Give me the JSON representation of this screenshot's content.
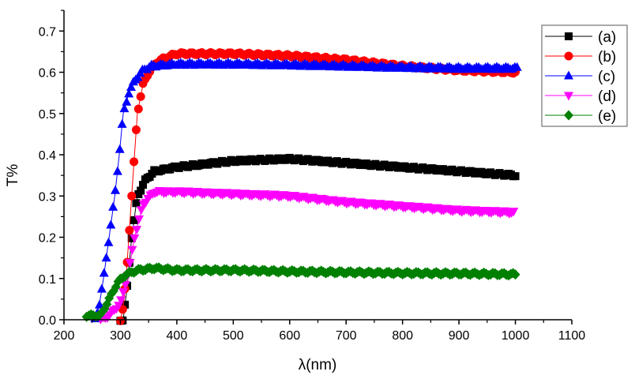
{
  "chart_data": {
    "type": "scatter",
    "title": "",
    "xlabel": "λ(nm)",
    "ylabel": "T%",
    "xlim": [
      200,
      1100
    ],
    "ylim": [
      0.0,
      0.75
    ],
    "xticks": [
      "200",
      "300",
      "400",
      "500",
      "600",
      "700",
      "800",
      "900",
      "1000",
      "1100"
    ],
    "yticks": [
      "0.0",
      "0.1",
      "0.2",
      "0.3",
      "0.4",
      "0.5",
      "0.6",
      "0.7"
    ],
    "grid": false,
    "legend_position": "top-right",
    "series": [
      {
        "name": "(a)",
        "color": "#000000",
        "marker": "square",
        "x": [
          300,
          305,
          312,
          320,
          330,
          345,
          360,
          400,
          500,
          600,
          700,
          800,
          900,
          1000
        ],
        "y": [
          0.0,
          0.0,
          0.08,
          0.2,
          0.3,
          0.34,
          0.36,
          0.37,
          0.385,
          0.39,
          0.38,
          0.37,
          0.36,
          0.35
        ]
      },
      {
        "name": "(b)",
        "color": "#ff0000",
        "marker": "circle",
        "x": [
          300,
          305,
          310,
          315,
          320,
          325,
          330,
          340,
          350,
          365,
          380,
          400,
          500,
          600,
          700,
          800,
          900,
          1000
        ],
        "y": [
          0.0,
          0.03,
          0.1,
          0.2,
          0.3,
          0.4,
          0.5,
          0.57,
          0.6,
          0.625,
          0.635,
          0.645,
          0.645,
          0.64,
          0.63,
          0.615,
          0.605,
          0.6
        ]
      },
      {
        "name": "(c)",
        "color": "#0000ff",
        "marker": "triangle-up",
        "x": [
          255,
          262,
          270,
          280,
          290,
          298,
          305,
          315,
          325,
          340,
          355,
          400,
          500,
          600,
          700,
          800,
          900,
          1005
        ],
        "y": [
          0.0,
          0.03,
          0.1,
          0.2,
          0.3,
          0.4,
          0.5,
          0.55,
          0.58,
          0.605,
          0.615,
          0.62,
          0.62,
          0.618,
          0.615,
          0.612,
          0.61,
          0.61
        ]
      },
      {
        "name": "(d)",
        "color": "#ff00ff",
        "marker": "triangle-down",
        "x": [
          265,
          280,
          300,
          315,
          325,
          340,
          360,
          400,
          500,
          600,
          700,
          800,
          900,
          1000
        ],
        "y": [
          0.0,
          0.01,
          0.04,
          0.12,
          0.2,
          0.28,
          0.31,
          0.31,
          0.305,
          0.3,
          0.285,
          0.275,
          0.265,
          0.26
        ]
      },
      {
        "name": "(e)",
        "color": "#008000",
        "marker": "diamond",
        "x": [
          240,
          255,
          265,
          280,
          295,
          310,
          330,
          360,
          400,
          500,
          600,
          700,
          800,
          900,
          1000
        ],
        "y": [
          0.01,
          0.01,
          0.01,
          0.05,
          0.09,
          0.11,
          0.12,
          0.125,
          0.12,
          0.12,
          0.117,
          0.115,
          0.113,
          0.112,
          0.11
        ]
      }
    ]
  }
}
